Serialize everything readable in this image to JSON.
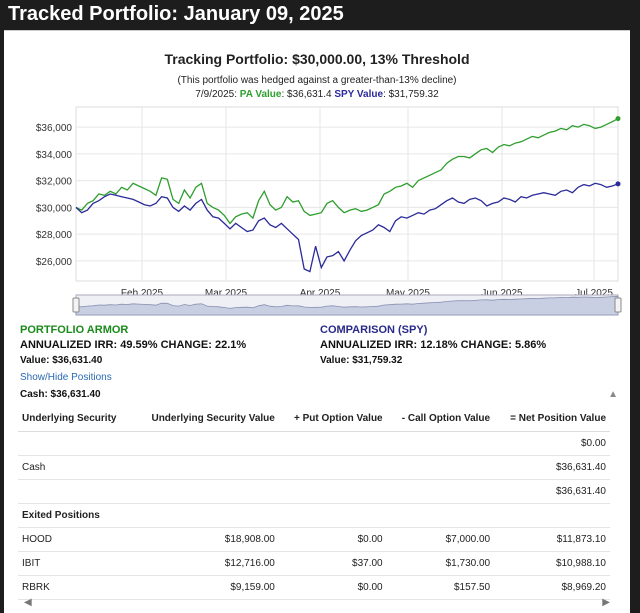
{
  "page_title": "Tracked Portfolio: January 09, 2025",
  "chart": {
    "title": "Tracking Portfolio: $30,000.00, 13% Threshold",
    "subtitle": "(This portfolio was hedged against a greater-than-13% decline)",
    "tooltip_date": "7/9/2025: ",
    "pa_value_label": "PA Value",
    "pa_value": ": $36,631.4 ",
    "spy_value_label": "SPY Value",
    "spy_value": ": $31,759.32"
  },
  "chart_data": {
    "type": "line",
    "x_labels": [
      "Feb 2025",
      "Mar 2025",
      "Apr 2025",
      "May 2025",
      "Jun 2025",
      "Jul 2025"
    ],
    "y_ticks": [
      "$36,000",
      "$34,000",
      "$32,000",
      "$30,000",
      "$28,000",
      "$26,000"
    ],
    "ylim": [
      24500,
      37500
    ],
    "grid": true,
    "series": [
      {
        "name": "PA Value",
        "color": "#2e9e2e",
        "values": [
          30000,
          29800,
          30300,
          30500,
          31000,
          30900,
          31200,
          31000,
          31500,
          31300,
          31800,
          31600,
          31400,
          31200,
          30900,
          32200,
          32100,
          30600,
          30300,
          31300,
          30700,
          31500,
          31800,
          30300,
          30000,
          29800,
          29400,
          28800,
          29300,
          29500,
          29600,
          29200,
          30500,
          31200,
          30200,
          29800,
          30000,
          30800,
          30400,
          30500,
          29700,
          29400,
          29500,
          29600,
          30300,
          30500,
          30000,
          29600,
          29800,
          29900,
          29700,
          29800,
          30000,
          30200,
          31000,
          31200,
          31500,
          31600,
          31800,
          31500,
          32000,
          32200,
          32400,
          32600,
          32800,
          33300,
          33600,
          33800,
          33800,
          33700,
          34000,
          34300,
          34400,
          34100,
          34500,
          34700,
          34600,
          34800,
          34900,
          35100,
          35300,
          35200,
          35400,
          35600,
          35700,
          35900,
          35800,
          36100,
          36000,
          36200,
          36100,
          35900,
          36000,
          36200,
          36400,
          36631.4
        ]
      },
      {
        "name": "SPY Value",
        "color": "#2a2a9a",
        "values": [
          30000,
          29600,
          29800,
          30300,
          30500,
          30800,
          31000,
          30900,
          30800,
          30700,
          30600,
          30400,
          30200,
          30100,
          30300,
          30800,
          30700,
          30000,
          29700,
          30100,
          29800,
          30300,
          30600,
          29800,
          29300,
          29200,
          28800,
          28400,
          28800,
          28500,
          28200,
          28300,
          29000,
          29200,
          28700,
          28500,
          28800,
          28400,
          28000,
          27600,
          25400,
          25200,
          27100,
          25500,
          26300,
          26400,
          26700,
          26000,
          26800,
          27500,
          27900,
          28100,
          28300,
          28700,
          28500,
          28200,
          29000,
          29300,
          29200,
          29400,
          29600,
          29500,
          29800,
          29900,
          30200,
          30500,
          30700,
          30400,
          30300,
          30600,
          30700,
          30500,
          30100,
          30300,
          30400,
          30700,
          30600,
          30400,
          30800,
          30700,
          30900,
          31000,
          31100,
          31000,
          30900,
          31200,
          31300,
          31100,
          31500,
          31700,
          31600,
          31800,
          31700,
          31500,
          31600,
          31759.32
        ]
      }
    ]
  },
  "summary": {
    "pa_name": "PORTFOLIO ARMOR",
    "pa_stats": "ANNUALIZED IRR: 49.59% CHANGE: 22.1%",
    "pa_value": "Value: $36,631.40",
    "spy_name": "COMPARISON (SPY)",
    "spy_stats": "ANNUALIZED IRR: 12.18% CHANGE: 5.86%",
    "spy_value": "Value: $31,759.32"
  },
  "toggle_label": "Show/Hide Positions",
  "cash_line": "Cash: $36,631.40",
  "table": {
    "headers": [
      "Underlying Security",
      "Underlying Security Value",
      "+ Put Option Value",
      "- Call Option Value",
      "= Net Position Value"
    ],
    "rows": [
      {
        "type": "data",
        "cells": [
          "",
          "",
          "",
          "",
          "$0.00"
        ]
      },
      {
        "type": "data",
        "cells": [
          "Cash",
          "",
          "",
          "",
          "$36,631.40"
        ]
      },
      {
        "type": "data",
        "cells": [
          "",
          "",
          "",
          "",
          "$36,631.40"
        ]
      },
      {
        "type": "section",
        "cells": [
          "Exited Positions",
          "",
          "",
          "",
          ""
        ]
      },
      {
        "type": "data",
        "cells": [
          "HOOD",
          "$18,908.00",
          "$0.00",
          "$7,000.00",
          "$11,873.10"
        ]
      },
      {
        "type": "data",
        "cells": [
          "IBIT",
          "$12,716.00",
          "$37.00",
          "$1,730.00",
          "$10,988.10"
        ]
      },
      {
        "type": "data",
        "cells": [
          "RBRK",
          "$9,159.00",
          "$0.00",
          "$157.50",
          "$8,969.20"
        ]
      }
    ]
  },
  "scroll": {
    "up_icon": "▲",
    "left_icon": "◀",
    "right_icon": "▶"
  }
}
